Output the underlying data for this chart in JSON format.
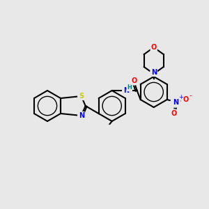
{
  "background_color": "#e8e8e8",
  "bond_color": "#000000",
  "title": "",
  "atom_colors": {
    "S": "#cccc00",
    "N": "#0000ff",
    "O": "#ff0000",
    "H": "#008080",
    "C": "#000000"
  },
  "figsize": [
    3.0,
    3.0
  ],
  "dpi": 100
}
